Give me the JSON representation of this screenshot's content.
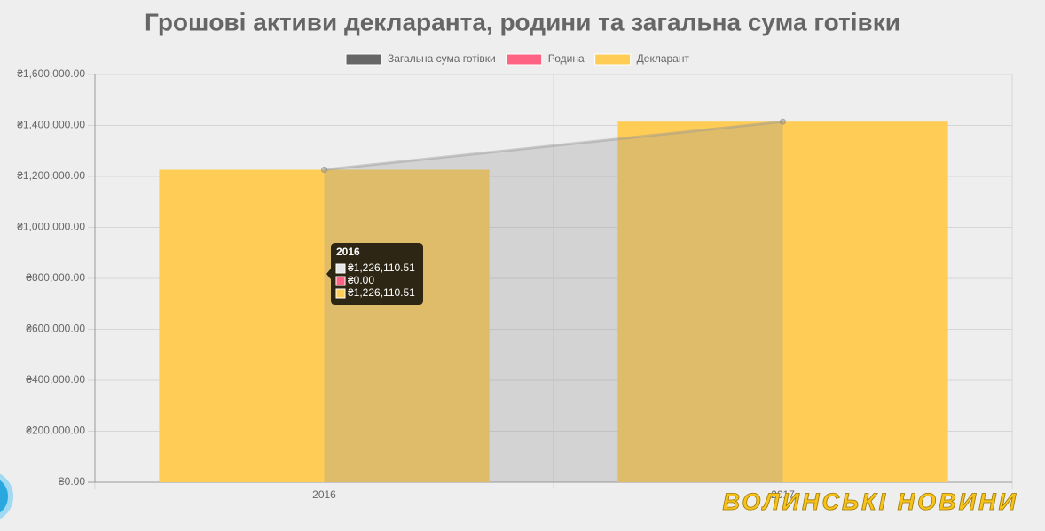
{
  "chart_data": {
    "type": "bar-line",
    "title": "Грошові активи декларанта, родини та загальна сума готівки",
    "categories": [
      "2016",
      "2017"
    ],
    "series": [
      {
        "name": "Загальна сума готівки",
        "type": "line",
        "color": "#666666",
        "values": [
          1226110.51,
          1415000
        ],
        "value_labels": [
          "₴1,226,110.51",
          null
        ]
      },
      {
        "name": "Родина",
        "type": "bar",
        "color": "#ff6384",
        "values": [
          0,
          0
        ],
        "value_labels": [
          "₴0.00",
          null
        ]
      },
      {
        "name": "Декларант",
        "type": "bar",
        "color": "#ffcd56",
        "values": [
          1226110.51,
          1415000
        ],
        "value_labels": [
          "₴1,226,110.51",
          null
        ]
      }
    ],
    "ylim": [
      0,
      1600000
    ],
    "yticks": [
      {
        "value": 0,
        "label": "₴0.00"
      },
      {
        "value": 200000,
        "label": "₴200,000.00"
      },
      {
        "value": 400000,
        "label": "₴400,000.00"
      },
      {
        "value": 600000,
        "label": "₴600,000.00"
      },
      {
        "value": 800000,
        "label": "₴800,000.00"
      },
      {
        "value": 1000000,
        "label": "₴1,000,000.00"
      },
      {
        "value": 1200000,
        "label": "₴1,200,000.00"
      },
      {
        "value": 1400000,
        "label": "₴1,400,000.00"
      },
      {
        "value": 1600000,
        "label": "₴1,600,000.00"
      }
    ],
    "grid": true,
    "legend": "top",
    "watermark": "ВОЛИНСЬКІ НОВИНИ"
  }
}
